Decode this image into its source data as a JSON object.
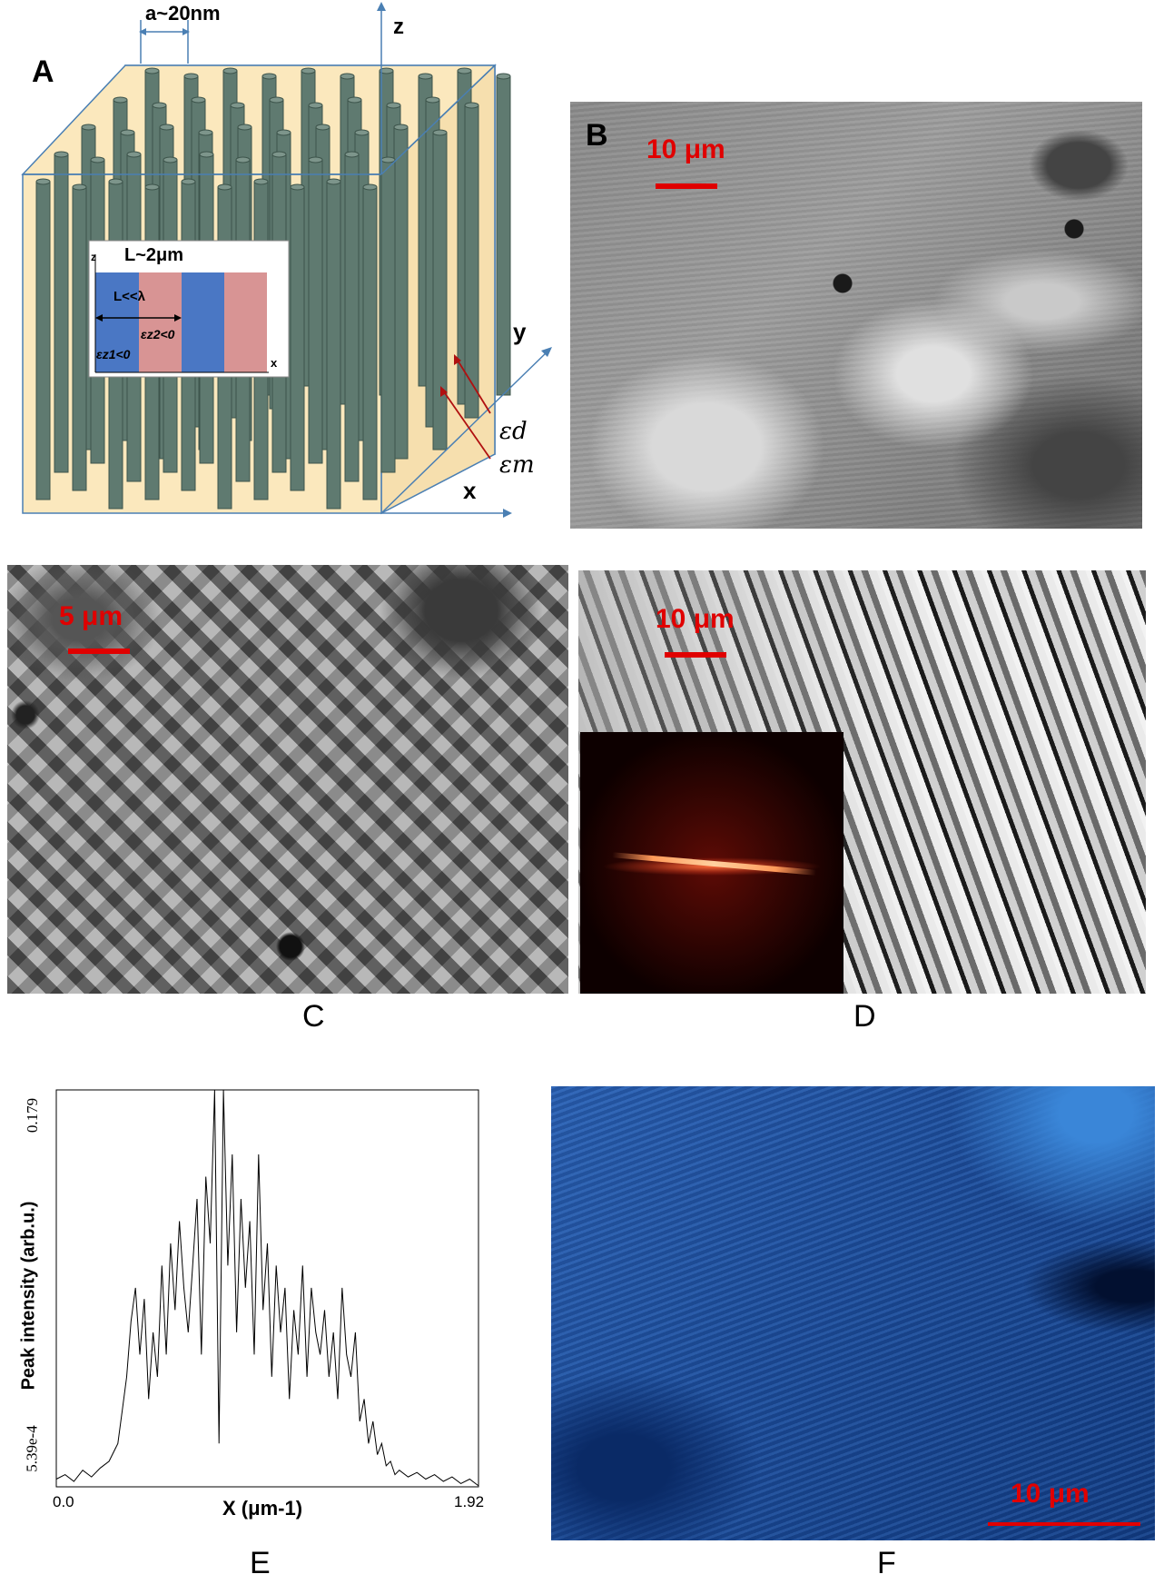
{
  "panels": {
    "A": {
      "letter": "A",
      "spacing_label": "a~20nm",
      "axis_z": "z",
      "axis_y": "y",
      "axis_x": "x",
      "eps_d": "εd",
      "eps_m": "εm",
      "inset": {
        "title": "L~2μm",
        "axis_z": "z",
        "axis_x": "x",
        "period_label": "L<<λ",
        "eps_z2": "εz2<0",
        "eps_z1": "εz1<0"
      },
      "colors": {
        "host": "#fbe8bd",
        "rod": "#5f7a70",
        "frame": "#4a7fb3",
        "layer_blue": "#4a77c4",
        "layer_pink": "#d89494"
      }
    },
    "B": {
      "letter": "B",
      "scale_label": "10 μm"
    },
    "C": {
      "letter": "C",
      "scale_label": "5 μm"
    },
    "D": {
      "letter": "D",
      "scale_label": "10 μm",
      "inset_desc": "fft"
    },
    "E": {
      "letter": "E",
      "ylabel": "Peak intensity (arb.u.)",
      "xlabel": "X (μm-1)",
      "y_tick_top": "0.179",
      "y_tick_bottom": "5.39e-4",
      "x_tick_left": "0.0",
      "x_tick_right": "1.92"
    },
    "F": {
      "letter": "F",
      "scale_label": "10 μm",
      "color": "#1c4fa0"
    }
  },
  "chart_data": {
    "type": "line",
    "xlabel": "X (μm-1)",
    "ylabel": "Peak intensity (arb.u.)",
    "xlim": [
      0.0,
      1.92
    ],
    "ylim": [
      0.000539,
      0.179
    ],
    "series": [
      {
        "x": [
          0.0,
          0.04,
          0.08,
          0.12,
          0.16,
          0.2,
          0.24,
          0.28,
          0.3,
          0.32,
          0.34,
          0.36,
          0.38,
          0.4,
          0.42,
          0.44,
          0.46,
          0.48,
          0.5,
          0.52,
          0.54,
          0.56,
          0.58,
          0.6,
          0.62,
          0.64,
          0.66,
          0.68,
          0.7,
          0.72,
          0.74,
          0.76,
          0.78,
          0.8,
          0.82,
          0.84,
          0.86,
          0.88,
          0.9,
          0.92,
          0.94,
          0.96,
          0.98,
          1.0,
          1.02,
          1.04,
          1.06,
          1.08,
          1.1,
          1.12,
          1.14,
          1.16,
          1.18,
          1.2,
          1.22,
          1.24,
          1.26,
          1.28,
          1.3,
          1.32,
          1.34,
          1.36,
          1.38,
          1.4,
          1.42,
          1.44,
          1.46,
          1.48,
          1.5,
          1.52,
          1.54,
          1.56,
          1.6,
          1.64,
          1.68,
          1.72,
          1.76,
          1.8,
          1.84,
          1.88,
          1.92
        ],
        "y": [
          0.004,
          0.006,
          0.003,
          0.008,
          0.005,
          0.009,
          0.012,
          0.02,
          0.035,
          0.05,
          0.075,
          0.09,
          0.06,
          0.085,
          0.04,
          0.07,
          0.05,
          0.1,
          0.06,
          0.11,
          0.08,
          0.12,
          0.09,
          0.07,
          0.1,
          0.13,
          0.06,
          0.14,
          0.11,
          0.179,
          0.02,
          0.179,
          0.1,
          0.15,
          0.07,
          0.13,
          0.09,
          0.12,
          0.06,
          0.15,
          0.08,
          0.11,
          0.05,
          0.1,
          0.07,
          0.09,
          0.04,
          0.08,
          0.06,
          0.1,
          0.05,
          0.09,
          0.07,
          0.06,
          0.08,
          0.05,
          0.07,
          0.04,
          0.09,
          0.06,
          0.05,
          0.07,
          0.03,
          0.04,
          0.02,
          0.03,
          0.015,
          0.02,
          0.01,
          0.012,
          0.006,
          0.008,
          0.005,
          0.007,
          0.004,
          0.006,
          0.003,
          0.005,
          0.002,
          0.004,
          0.001
        ]
      }
    ]
  }
}
